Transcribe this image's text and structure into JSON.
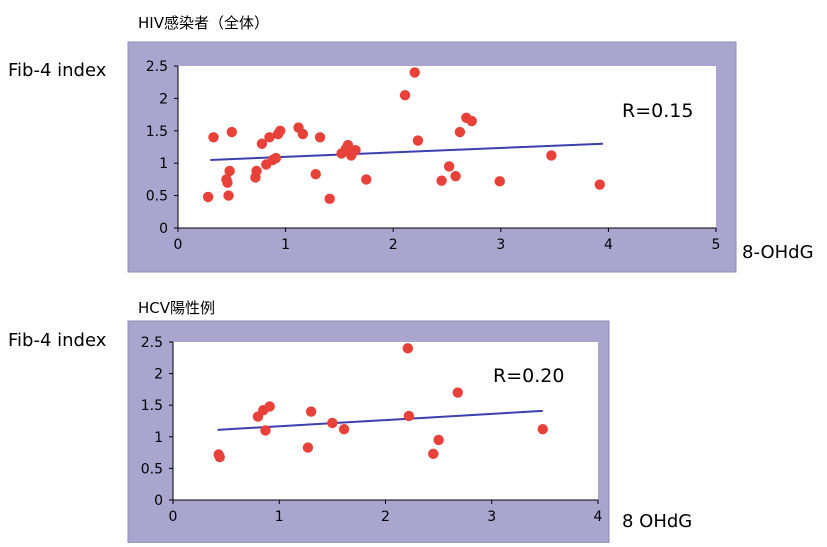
{
  "chart_data": [
    {
      "type": "scatter",
      "title": "HIV感染者（全体）",
      "ylabel": "Fib-4 index",
      "xlabel": "8-OHdG",
      "annotation": "R=0.15",
      "xlim": [
        0,
        5
      ],
      "ylim": [
        0,
        2.5
      ],
      "xticks": [
        "0",
        "1",
        "2",
        "3",
        "4",
        "5"
      ],
      "yticks": [
        "0",
        "0.5",
        "1",
        "1.5",
        "2",
        "2.5"
      ],
      "grid": false,
      "legend": "none",
      "colors": {
        "point": "#e8413a",
        "trend": "#3b3fb0",
        "frame": "#a9a5cf",
        "plot": "#ffffff"
      },
      "points": [
        [
          0.28,
          0.48
        ],
        [
          0.33,
          1.4
        ],
        [
          0.45,
          0.75
        ],
        [
          0.46,
          0.7
        ],
        [
          0.47,
          0.5
        ],
        [
          0.48,
          0.88
        ],
        [
          0.5,
          1.48
        ],
        [
          0.72,
          0.78
        ],
        [
          0.73,
          0.88
        ],
        [
          0.78,
          1.3
        ],
        [
          0.82,
          0.98
        ],
        [
          0.85,
          1.4
        ],
        [
          0.88,
          1.05
        ],
        [
          0.91,
          1.08
        ],
        [
          0.93,
          1.45
        ],
        [
          0.95,
          1.5
        ],
        [
          1.12,
          1.55
        ],
        [
          1.16,
          1.45
        ],
        [
          1.28,
          0.83
        ],
        [
          1.32,
          1.4
        ],
        [
          1.41,
          0.45
        ],
        [
          1.52,
          1.15
        ],
        [
          1.56,
          1.22
        ],
        [
          1.58,
          1.28
        ],
        [
          1.61,
          1.12
        ],
        [
          1.65,
          1.2
        ],
        [
          1.75,
          0.75
        ],
        [
          2.11,
          2.05
        ],
        [
          2.2,
          2.4
        ],
        [
          2.23,
          1.35
        ],
        [
          2.45,
          0.73
        ],
        [
          2.52,
          0.95
        ],
        [
          2.58,
          0.8
        ],
        [
          2.62,
          1.48
        ],
        [
          2.68,
          1.7
        ],
        [
          2.73,
          1.65
        ],
        [
          2.99,
          0.72
        ],
        [
          3.47,
          1.12
        ],
        [
          3.92,
          0.67
        ]
      ],
      "trend": {
        "x": [
          0.3,
          3.95
        ],
        "y": [
          1.05,
          1.3
        ]
      }
    },
    {
      "type": "scatter",
      "title": "HCV陽性例",
      "ylabel": "Fib-4 index",
      "xlabel": "8 OHdG",
      "annotation": "R=0.20",
      "xlim": [
        0,
        4
      ],
      "ylim": [
        0,
        2.5
      ],
      "xticks": [
        "0",
        "1",
        "2",
        "3",
        "4"
      ],
      "yticks": [
        "0",
        "0.5",
        "1",
        "1.5",
        "2",
        "2.5"
      ],
      "grid": false,
      "legend": "none",
      "colors": {
        "point": "#e8413a",
        "trend": "#3b3fb0",
        "frame": "#a9a5cf",
        "plot": "#ffffff"
      },
      "points": [
        [
          0.43,
          0.72
        ],
        [
          0.44,
          0.68
        ],
        [
          0.8,
          1.32
        ],
        [
          0.85,
          1.42
        ],
        [
          0.87,
          1.1
        ],
        [
          0.91,
          1.48
        ],
        [
          1.27,
          0.83
        ],
        [
          1.3,
          1.4
        ],
        [
          1.5,
          1.22
        ],
        [
          1.61,
          1.12
        ],
        [
          2.21,
          2.4
        ],
        [
          2.22,
          1.33
        ],
        [
          2.45,
          0.73
        ],
        [
          2.5,
          0.95
        ],
        [
          2.68,
          1.7
        ],
        [
          3.48,
          1.12
        ]
      ],
      "trend": {
        "x": [
          0.42,
          3.48
        ],
        "y": [
          1.11,
          1.41
        ]
      }
    }
  ]
}
